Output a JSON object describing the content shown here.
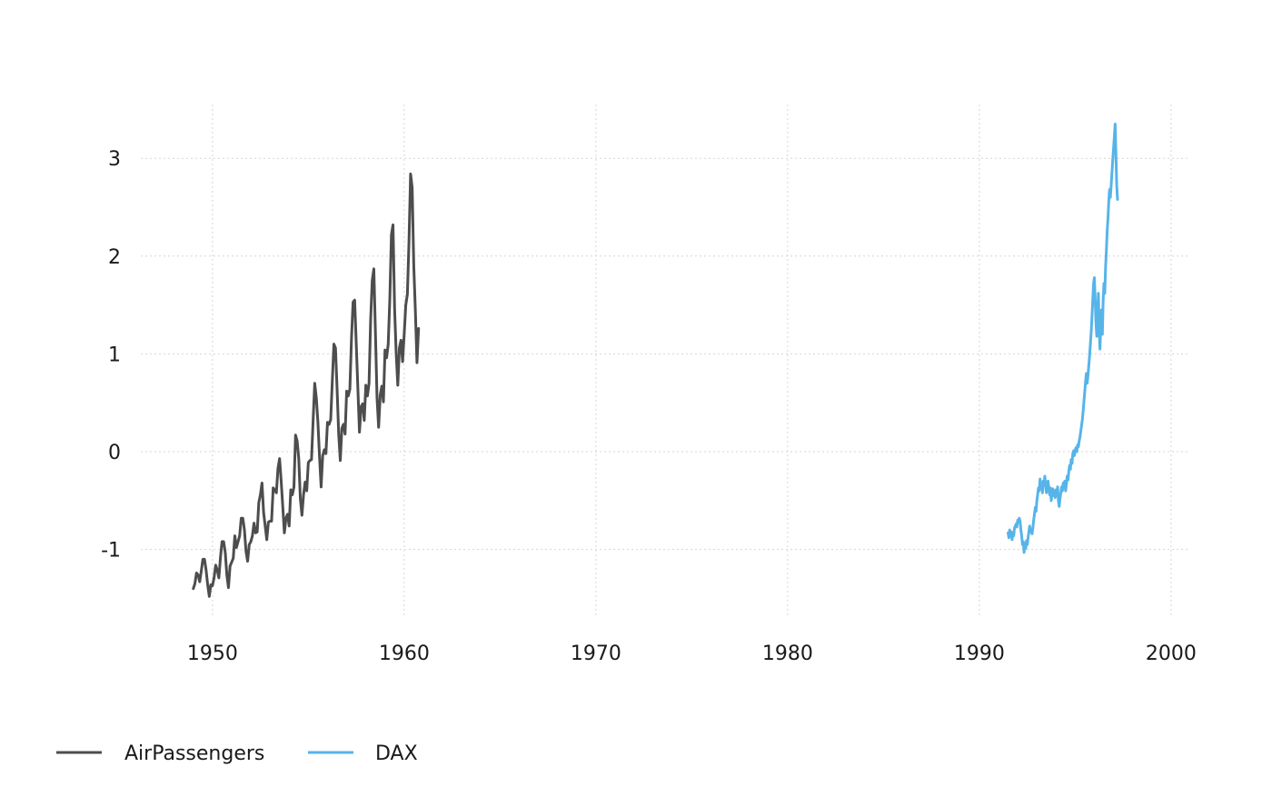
{
  "chart_data": {
    "type": "line",
    "title": "",
    "xlabel": "",
    "ylabel": "",
    "xlim": [
      1946.5,
      2001
    ],
    "ylim": [
      -1.7,
      3.55
    ],
    "x_ticks": [
      1950,
      1960,
      1970,
      1980,
      1990,
      2000
    ],
    "x_tick_labels": [
      "1950",
      "1960",
      "1970",
      "1980",
      "1990",
      "2000"
    ],
    "y_ticks": [
      -1,
      0,
      1,
      2,
      3
    ],
    "y_tick_labels": [
      "-1",
      "0",
      "1",
      "2",
      "3"
    ],
    "grid": true,
    "legend_position": "bottom-left",
    "series": [
      {
        "name": "AirPassengers",
        "color": "#4d4d4d",
        "x_start": 1949.0,
        "x_step": 0.0833333,
        "values": [
          -1.4,
          -1.35,
          -1.24,
          -1.26,
          -1.33,
          -1.22,
          -1.1,
          -1.1,
          -1.21,
          -1.36,
          -1.48,
          -1.36,
          -1.37,
          -1.29,
          -1.16,
          -1.21,
          -1.29,
          -1.08,
          -0.92,
          -0.92,
          -1.03,
          -1.26,
          -1.39,
          -1.17,
          -1.13,
          -1.09,
          -0.86,
          -0.98,
          -0.92,
          -0.86,
          -0.68,
          -0.68,
          -0.8,
          -1.02,
          -1.12,
          -0.95,
          -0.92,
          -0.86,
          -0.73,
          -0.83,
          -0.82,
          -0.52,
          -0.44,
          -0.32,
          -0.62,
          -0.76,
          -0.9,
          -0.72,
          -0.71,
          -0.71,
          -0.37,
          -0.39,
          -0.42,
          -0.17,
          -0.07,
          -0.3,
          -0.56,
          -0.83,
          -0.68,
          -0.64,
          -0.76,
          -0.39,
          -0.44,
          -0.36,
          0.17,
          0.11,
          -0.07,
          -0.48,
          -0.65,
          -0.44,
          -0.31,
          -0.4,
          -0.11,
          -0.09,
          -0.08,
          0.32,
          0.7,
          0.55,
          0.3,
          -0.05,
          -0.36,
          -0.04,
          0.02,
          -0.02,
          0.3,
          0.28,
          0.33,
          0.72,
          1.1,
          1.06,
          0.64,
          0.18,
          -0.09,
          0.24,
          0.28,
          0.18,
          0.62,
          0.57,
          0.64,
          1.15,
          1.53,
          1.55,
          1.1,
          0.65,
          0.2,
          0.46,
          0.49,
          0.32,
          0.68,
          0.57,
          0.7,
          1.35,
          1.75,
          1.87,
          1.22,
          0.55,
          0.25,
          0.58,
          0.67,
          0.51,
          1.04,
          0.96,
          1.1,
          1.56,
          2.22,
          2.32,
          1.46,
          1.0,
          0.68,
          1.06,
          1.14,
          0.92,
          1.2,
          1.5,
          1.61,
          2.15,
          2.84,
          2.7,
          1.9,
          1.44,
          0.91,
          1.26
        ]
      },
      {
        "name": "DAX",
        "color": "#56b4e9",
        "x_start": 1991.5,
        "x_step": 0.0416667,
        "values": [
          -0.83,
          -0.88,
          -0.8,
          -0.86,
          -0.82,
          -0.9,
          -0.83,
          -0.86,
          -0.78,
          -0.76,
          -0.74,
          -0.77,
          -0.7,
          -0.72,
          -0.68,
          -0.71,
          -0.8,
          -0.86,
          -0.95,
          -0.92,
          -1.03,
          -0.94,
          -0.99,
          -0.91,
          -0.95,
          -0.88,
          -0.82,
          -0.76,
          -0.82,
          -0.79,
          -0.84,
          -0.78,
          -0.7,
          -0.64,
          -0.57,
          -0.61,
          -0.5,
          -0.44,
          -0.37,
          -0.4,
          -0.28,
          -0.36,
          -0.32,
          -0.42,
          -0.3,
          -0.34,
          -0.25,
          -0.35,
          -0.42,
          -0.35,
          -0.3,
          -0.38,
          -0.44,
          -0.37,
          -0.5,
          -0.42,
          -0.38,
          -0.45,
          -0.4,
          -0.47,
          -0.39,
          -0.44,
          -0.36,
          -0.5,
          -0.56,
          -0.48,
          -0.42,
          -0.36,
          -0.4,
          -0.32,
          -0.37,
          -0.3,
          -0.4,
          -0.33,
          -0.25,
          -0.29,
          -0.2,
          -0.14,
          -0.18,
          -0.08,
          -0.12,
          -0.02,
          0.01,
          -0.04,
          0.02,
          0.04,
          0.0,
          0.07,
          0.05,
          0.11,
          0.15,
          0.21,
          0.27,
          0.33,
          0.42,
          0.52,
          0.62,
          0.72,
          0.8,
          0.7,
          0.78,
          0.88,
          0.98,
          1.1,
          1.22,
          1.38,
          1.55,
          1.72,
          1.78,
          1.56,
          1.32,
          1.18,
          1.4,
          1.62,
          1.25,
          1.05,
          1.3,
          1.45,
          1.2,
          1.55,
          1.72,
          1.62,
          1.88,
          2.05,
          2.25,
          2.38,
          2.55,
          2.68,
          2.6,
          2.72,
          2.85,
          2.98,
          3.1,
          3.22,
          3.35,
          3.05,
          2.72,
          2.58
        ]
      }
    ]
  }
}
